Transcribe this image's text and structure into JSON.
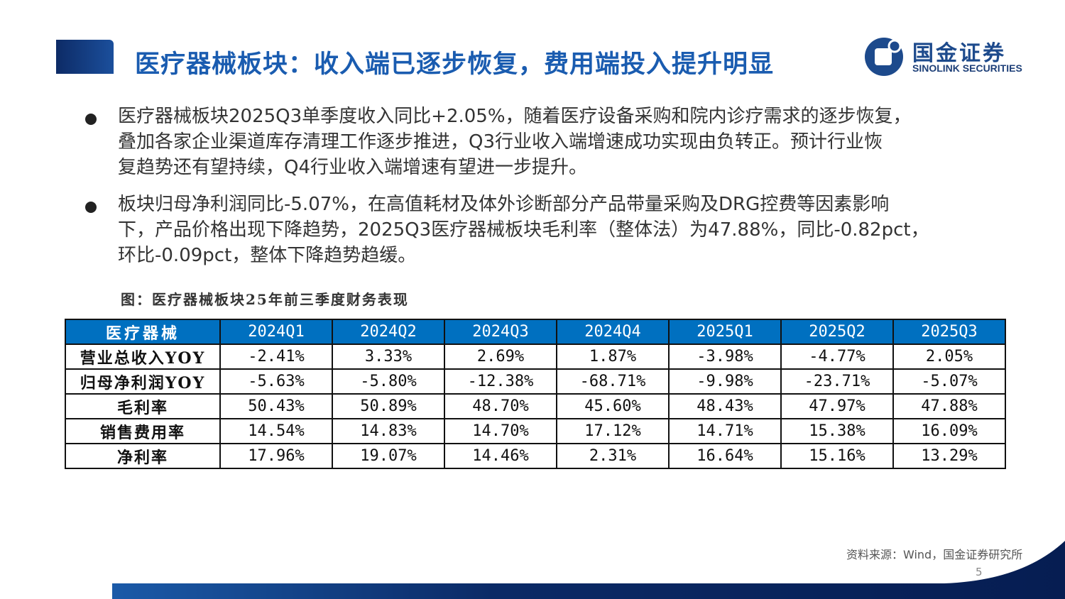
{
  "header": {
    "title": "医疗器械板块：收入端已逐步恢复，费用端投入提升明显"
  },
  "logo": {
    "cn": "国金证券",
    "en": "SINOLINK SECURITIES"
  },
  "bullets": [
    {
      "lines": [
        "医疗器械板块2025Q3单季度收入同比+2.05%，随着医疗设备采购和院内诊疗需求的逐步恢复，",
        "叠加各家企业渠道库存清理工作逐步推进，Q3行业收入端增速成功实现由负转正。预计行业恢",
        "复趋势还有望持续，Q4行业收入端增速有望进一步提升。"
      ]
    },
    {
      "lines": [
        "板块归母净利润同比-5.07%，在高值耗材及体外诊断部分产品带量采购及DRG控费等因素影响",
        "下，产品价格出现下降趋势，2025Q3医疗器械板块毛利率（整体法）为47.88%，同比-0.82pct，",
        "环比-0.09pct，整体下降趋势趋缓。"
      ]
    }
  ],
  "caption": "图：医疗器械板块25年前三季度财务表现",
  "table": {
    "headers": [
      "医疗器械",
      "2024Q1",
      "2024Q2",
      "2024Q3",
      "2024Q4",
      "2025Q1",
      "2025Q2",
      "2025Q3"
    ],
    "header_color": "#0070c0",
    "rows": [
      [
        "营业总收入YOY",
        "-2.41%",
        "3.33%",
        "2.69%",
        "1.87%",
        "-3.98%",
        "-4.77%",
        "2.05%"
      ],
      [
        "归母净利润YOY",
        "-5.63%",
        "-5.80%",
        "-12.38%",
        "-68.71%",
        "-9.98%",
        "-23.71%",
        "-5.07%"
      ],
      [
        "毛利率",
        "50.43%",
        "50.89%",
        "48.70%",
        "45.60%",
        "48.43%",
        "47.97%",
        "47.88%"
      ],
      [
        "销售费用率",
        "14.54%",
        "14.83%",
        "14.70%",
        "17.12%",
        "14.71%",
        "15.38%",
        "16.09%"
      ],
      [
        "净利率",
        "17.96%",
        "19.07%",
        "14.46%",
        "2.31%",
        "16.64%",
        "15.16%",
        "13.29%"
      ]
    ]
  },
  "source": "资料来源：Wind，国金证券研究所",
  "page_number": "5"
}
